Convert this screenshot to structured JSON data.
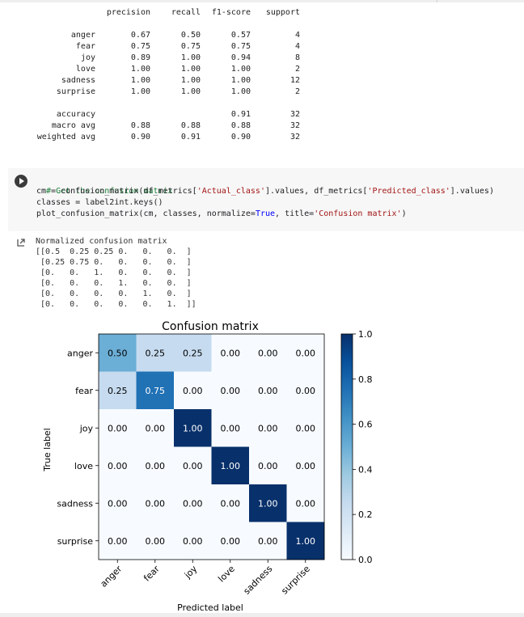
{
  "report": {
    "header": [
      "precision",
      "recall",
      "f1-score",
      "support"
    ],
    "rows": [
      {
        "label": "anger",
        "precision": "0.67",
        "recall": "0.50",
        "f1": "0.57",
        "support": "4"
      },
      {
        "label": "fear",
        "precision": "0.75",
        "recall": "0.75",
        "f1": "0.75",
        "support": "4"
      },
      {
        "label": "joy",
        "precision": "0.89",
        "recall": "1.00",
        "f1": "0.94",
        "support": "8"
      },
      {
        "label": "love",
        "precision": "1.00",
        "recall": "1.00",
        "f1": "1.00",
        "support": "2"
      },
      {
        "label": "sadness",
        "precision": "1.00",
        "recall": "1.00",
        "f1": "1.00",
        "support": "12"
      },
      {
        "label": "surprise",
        "precision": "1.00",
        "recall": "1.00",
        "f1": "1.00",
        "support": "2"
      }
    ],
    "summary": [
      {
        "label": "accuracy",
        "precision": "",
        "recall": "",
        "f1": "0.91",
        "support": "32"
      },
      {
        "label": "macro avg",
        "precision": "0.88",
        "recall": "0.88",
        "f1": "0.88",
        "support": "32"
      },
      {
        "label": "weighted avg",
        "precision": "0.90",
        "recall": "0.91",
        "f1": "0.90",
        "support": "32"
      }
    ]
  },
  "code_cell": {
    "lines": [
      "# Get the confusion matrix",
      "cm = confusion_matrix(df_metrics['Actual_class'].values, df_metrics['Predicted_class'].values)",
      "classes = label2int.keys()",
      "plot_confusion_matrix(cm, classes, normalize=True, title='Confusion matrix')"
    ]
  },
  "output": {
    "lines": [
      "Normalized confusion matrix",
      "[[0.5  0.25 0.25 0.   0.   0.  ]",
      " [0.25 0.75 0.   0.   0.   0.  ]",
      " [0.   0.   1.   0.   0.   0.  ]",
      " [0.   0.   0.   1.   0.   0.  ]",
      " [0.   0.   0.   0.   1.   0.  ]",
      " [0.   0.   0.   0.   0.   1.  ]]"
    ]
  },
  "chart_data": {
    "type": "heatmap",
    "title": "Confusion matrix",
    "xlabel": "Predicted label",
    "ylabel": "True label",
    "x_categories": [
      "anger",
      "fear",
      "joy",
      "love",
      "sadness",
      "surprise"
    ],
    "y_categories": [
      "anger",
      "fear",
      "joy",
      "love",
      "sadness",
      "surprise"
    ],
    "values": [
      [
        0.5,
        0.25,
        0.25,
        0.0,
        0.0,
        0.0
      ],
      [
        0.25,
        0.75,
        0.0,
        0.0,
        0.0,
        0.0
      ],
      [
        0.0,
        0.0,
        1.0,
        0.0,
        0.0,
        0.0
      ],
      [
        0.0,
        0.0,
        0.0,
        1.0,
        0.0,
        0.0
      ],
      [
        0.0,
        0.0,
        0.0,
        0.0,
        1.0,
        0.0
      ],
      [
        0.0,
        0.0,
        0.0,
        0.0,
        0.0,
        1.0
      ]
    ],
    "cell_labels": [
      [
        "0.50",
        "0.25",
        "0.25",
        "0.00",
        "0.00",
        "0.00"
      ],
      [
        "0.25",
        "0.75",
        "0.00",
        "0.00",
        "0.00",
        "0.00"
      ],
      [
        "0.00",
        "0.00",
        "1.00",
        "0.00",
        "0.00",
        "0.00"
      ],
      [
        "0.00",
        "0.00",
        "0.00",
        "1.00",
        "0.00",
        "0.00"
      ],
      [
        "0.00",
        "0.00",
        "0.00",
        "0.00",
        "1.00",
        "0.00"
      ],
      [
        "0.00",
        "0.00",
        "0.00",
        "0.00",
        "0.00",
        "1.00"
      ]
    ],
    "colormap": "Blues",
    "colorbar": {
      "range": [
        0.0,
        1.0
      ],
      "ticks": [
        "0.0",
        "0.2",
        "0.4",
        "0.6",
        "0.8",
        "1.0"
      ]
    }
  },
  "colors": {
    "comment": "#188038",
    "string": "#a31515",
    "keyword": "#0000ff"
  },
  "icons": {
    "run": "play-icon",
    "output": "output-icon"
  }
}
